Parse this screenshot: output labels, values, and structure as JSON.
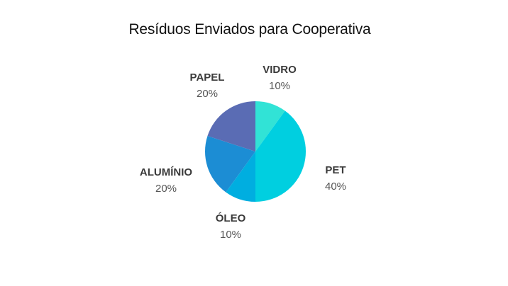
{
  "chart_data": {
    "type": "pie",
    "title": "Resíduos Enviados para Cooperativa",
    "slices": [
      {
        "label": "VIDRO",
        "value": 10,
        "value_label": "10%",
        "color": "#31e3d6"
      },
      {
        "label": "PET",
        "value": 40,
        "value_label": "40%",
        "color": "#00cfe0"
      },
      {
        "label": "ÓLEO",
        "value": 10,
        "value_label": "10%",
        "color": "#00aee0"
      },
      {
        "label": "ALUMÍNIO",
        "value": 20,
        "value_label": "20%",
        "color": "#1c8dd4"
      },
      {
        "label": "PAPEL",
        "value": 20,
        "value_label": "20%",
        "color": "#5a6cb4"
      }
    ],
    "start_angle_deg": 0,
    "direction": "clockwise",
    "legend": "none"
  }
}
